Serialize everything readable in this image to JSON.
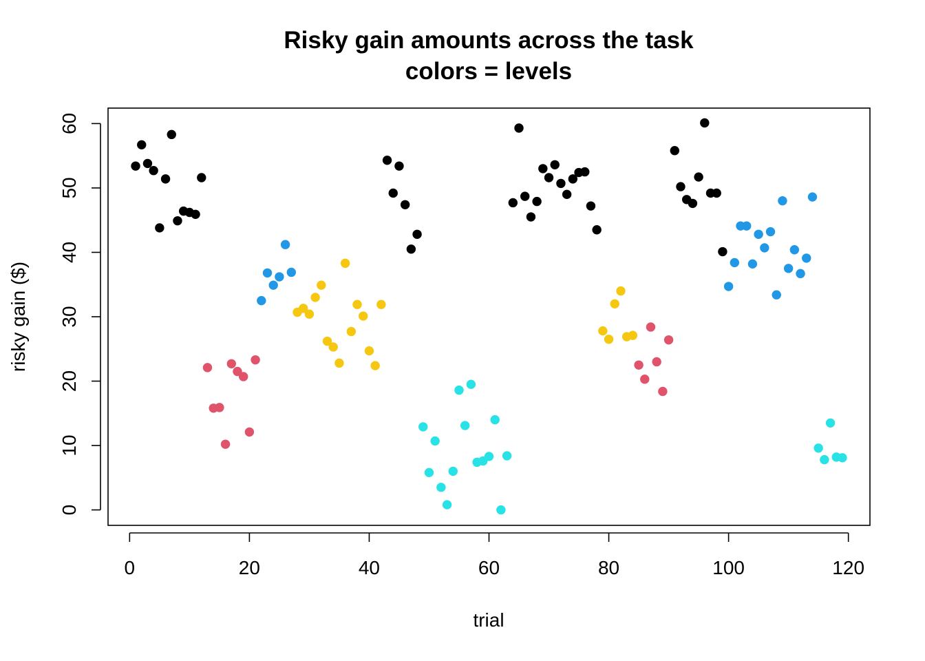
{
  "chart_data": {
    "type": "scatter",
    "title": "Risky gain amounts across the task",
    "subtitle": "colors = levels",
    "xlabel": "trial",
    "ylabel": "risky gain ($)",
    "xlim": [
      -3.6,
      123.6
    ],
    "ylim": [
      -2.4,
      62.4
    ],
    "xticks": [
      0,
      20,
      40,
      60,
      80,
      100,
      120
    ],
    "yticks": [
      0,
      10,
      20,
      30,
      40,
      50,
      60
    ],
    "grid": false,
    "colors": {
      "black": "#000000",
      "red": "#DF536B",
      "blue": "#2297E6",
      "yellow": "#F5C710",
      "cyan": "#28E2E5"
    },
    "series": [
      {
        "color": "#000000",
        "points": [
          [
            1,
            53.4
          ],
          [
            2,
            56.7
          ],
          [
            3,
            53.8
          ],
          [
            4,
            52.7
          ],
          [
            5,
            43.8
          ],
          [
            6,
            51.4
          ],
          [
            7,
            58.3
          ],
          [
            8,
            44.9
          ],
          [
            9,
            46.4
          ],
          [
            10,
            46.2
          ],
          [
            11,
            45.9
          ],
          [
            12,
            51.6
          ],
          [
            43,
            54.3
          ],
          [
            44,
            49.2
          ],
          [
            45,
            53.4
          ],
          [
            46,
            47.4
          ],
          [
            47,
            40.5
          ],
          [
            48,
            42.8
          ],
          [
            64,
            47.7
          ],
          [
            65,
            59.3
          ],
          [
            66,
            48.7
          ],
          [
            67,
            45.5
          ],
          [
            68,
            47.9
          ],
          [
            69,
            53.0
          ],
          [
            70,
            51.6
          ],
          [
            71,
            53.6
          ],
          [
            72,
            50.7
          ],
          [
            73,
            49.0
          ],
          [
            74,
            51.4
          ],
          [
            75,
            52.4
          ],
          [
            76,
            52.5
          ],
          [
            77,
            47.2
          ],
          [
            78,
            43.5
          ],
          [
            91,
            55.8
          ],
          [
            92,
            50.2
          ],
          [
            93,
            48.2
          ],
          [
            94,
            47.6
          ],
          [
            95,
            51.7
          ],
          [
            96,
            60.1
          ],
          [
            97,
            49.2
          ],
          [
            98,
            49.2
          ],
          [
            99,
            40.1
          ]
        ]
      },
      {
        "color": "#DF536B",
        "points": [
          [
            13,
            22.1
          ],
          [
            14,
            15.8
          ],
          [
            15,
            15.9
          ],
          [
            16,
            10.2
          ],
          [
            17,
            22.7
          ],
          [
            18,
            21.5
          ],
          [
            19,
            20.7
          ],
          [
            20,
            12.1
          ],
          [
            21,
            23.3
          ],
          [
            85,
            22.5
          ],
          [
            86,
            20.3
          ],
          [
            87,
            28.4
          ],
          [
            88,
            23.0
          ],
          [
            89,
            18.4
          ],
          [
            90,
            26.4
          ]
        ]
      },
      {
        "color": "#2297E6",
        "points": [
          [
            22,
            32.5
          ],
          [
            23,
            36.8
          ],
          [
            24,
            34.9
          ],
          [
            25,
            36.2
          ],
          [
            26,
            41.2
          ],
          [
            27,
            36.9
          ],
          [
            100,
            34.7
          ],
          [
            101,
            38.4
          ],
          [
            102,
            44.1
          ],
          [
            103,
            44.1
          ],
          [
            104,
            38.2
          ],
          [
            105,
            42.8
          ],
          [
            106,
            40.7
          ],
          [
            107,
            43.2
          ],
          [
            108,
            33.4
          ],
          [
            109,
            48.0
          ],
          [
            110,
            37.5
          ],
          [
            111,
            40.4
          ],
          [
            112,
            36.7
          ],
          [
            113,
            39.1
          ],
          [
            114,
            48.6
          ]
        ]
      },
      {
        "color": "#F5C710",
        "points": [
          [
            28,
            30.7
          ],
          [
            29,
            31.3
          ],
          [
            30,
            30.4
          ],
          [
            31,
            33.0
          ],
          [
            32,
            34.9
          ],
          [
            33,
            26.2
          ],
          [
            34,
            25.3
          ],
          [
            35,
            22.8
          ],
          [
            36,
            38.3
          ],
          [
            37,
            27.7
          ],
          [
            38,
            31.9
          ],
          [
            39,
            30.1
          ],
          [
            40,
            24.7
          ],
          [
            41,
            22.4
          ],
          [
            42,
            31.9
          ],
          [
            79,
            27.8
          ],
          [
            80,
            26.5
          ],
          [
            81,
            32.0
          ],
          [
            82,
            34.0
          ],
          [
            83,
            26.9
          ],
          [
            84,
            27.1
          ]
        ]
      },
      {
        "color": "#28E2E5",
        "points": [
          [
            49,
            12.9
          ],
          [
            50,
            5.8
          ],
          [
            51,
            10.7
          ],
          [
            52,
            3.5
          ],
          [
            53,
            0.8
          ],
          [
            54,
            6.0
          ],
          [
            55,
            18.6
          ],
          [
            56,
            13.1
          ],
          [
            57,
            19.5
          ],
          [
            58,
            7.4
          ],
          [
            59,
            7.6
          ],
          [
            60,
            8.3
          ],
          [
            61,
            14.0
          ],
          [
            62,
            0.0
          ],
          [
            63,
            8.4
          ],
          [
            115,
            9.6
          ],
          [
            116,
            7.8
          ],
          [
            117,
            13.5
          ],
          [
            118,
            8.2
          ],
          [
            119,
            8.1
          ]
        ]
      }
    ]
  }
}
